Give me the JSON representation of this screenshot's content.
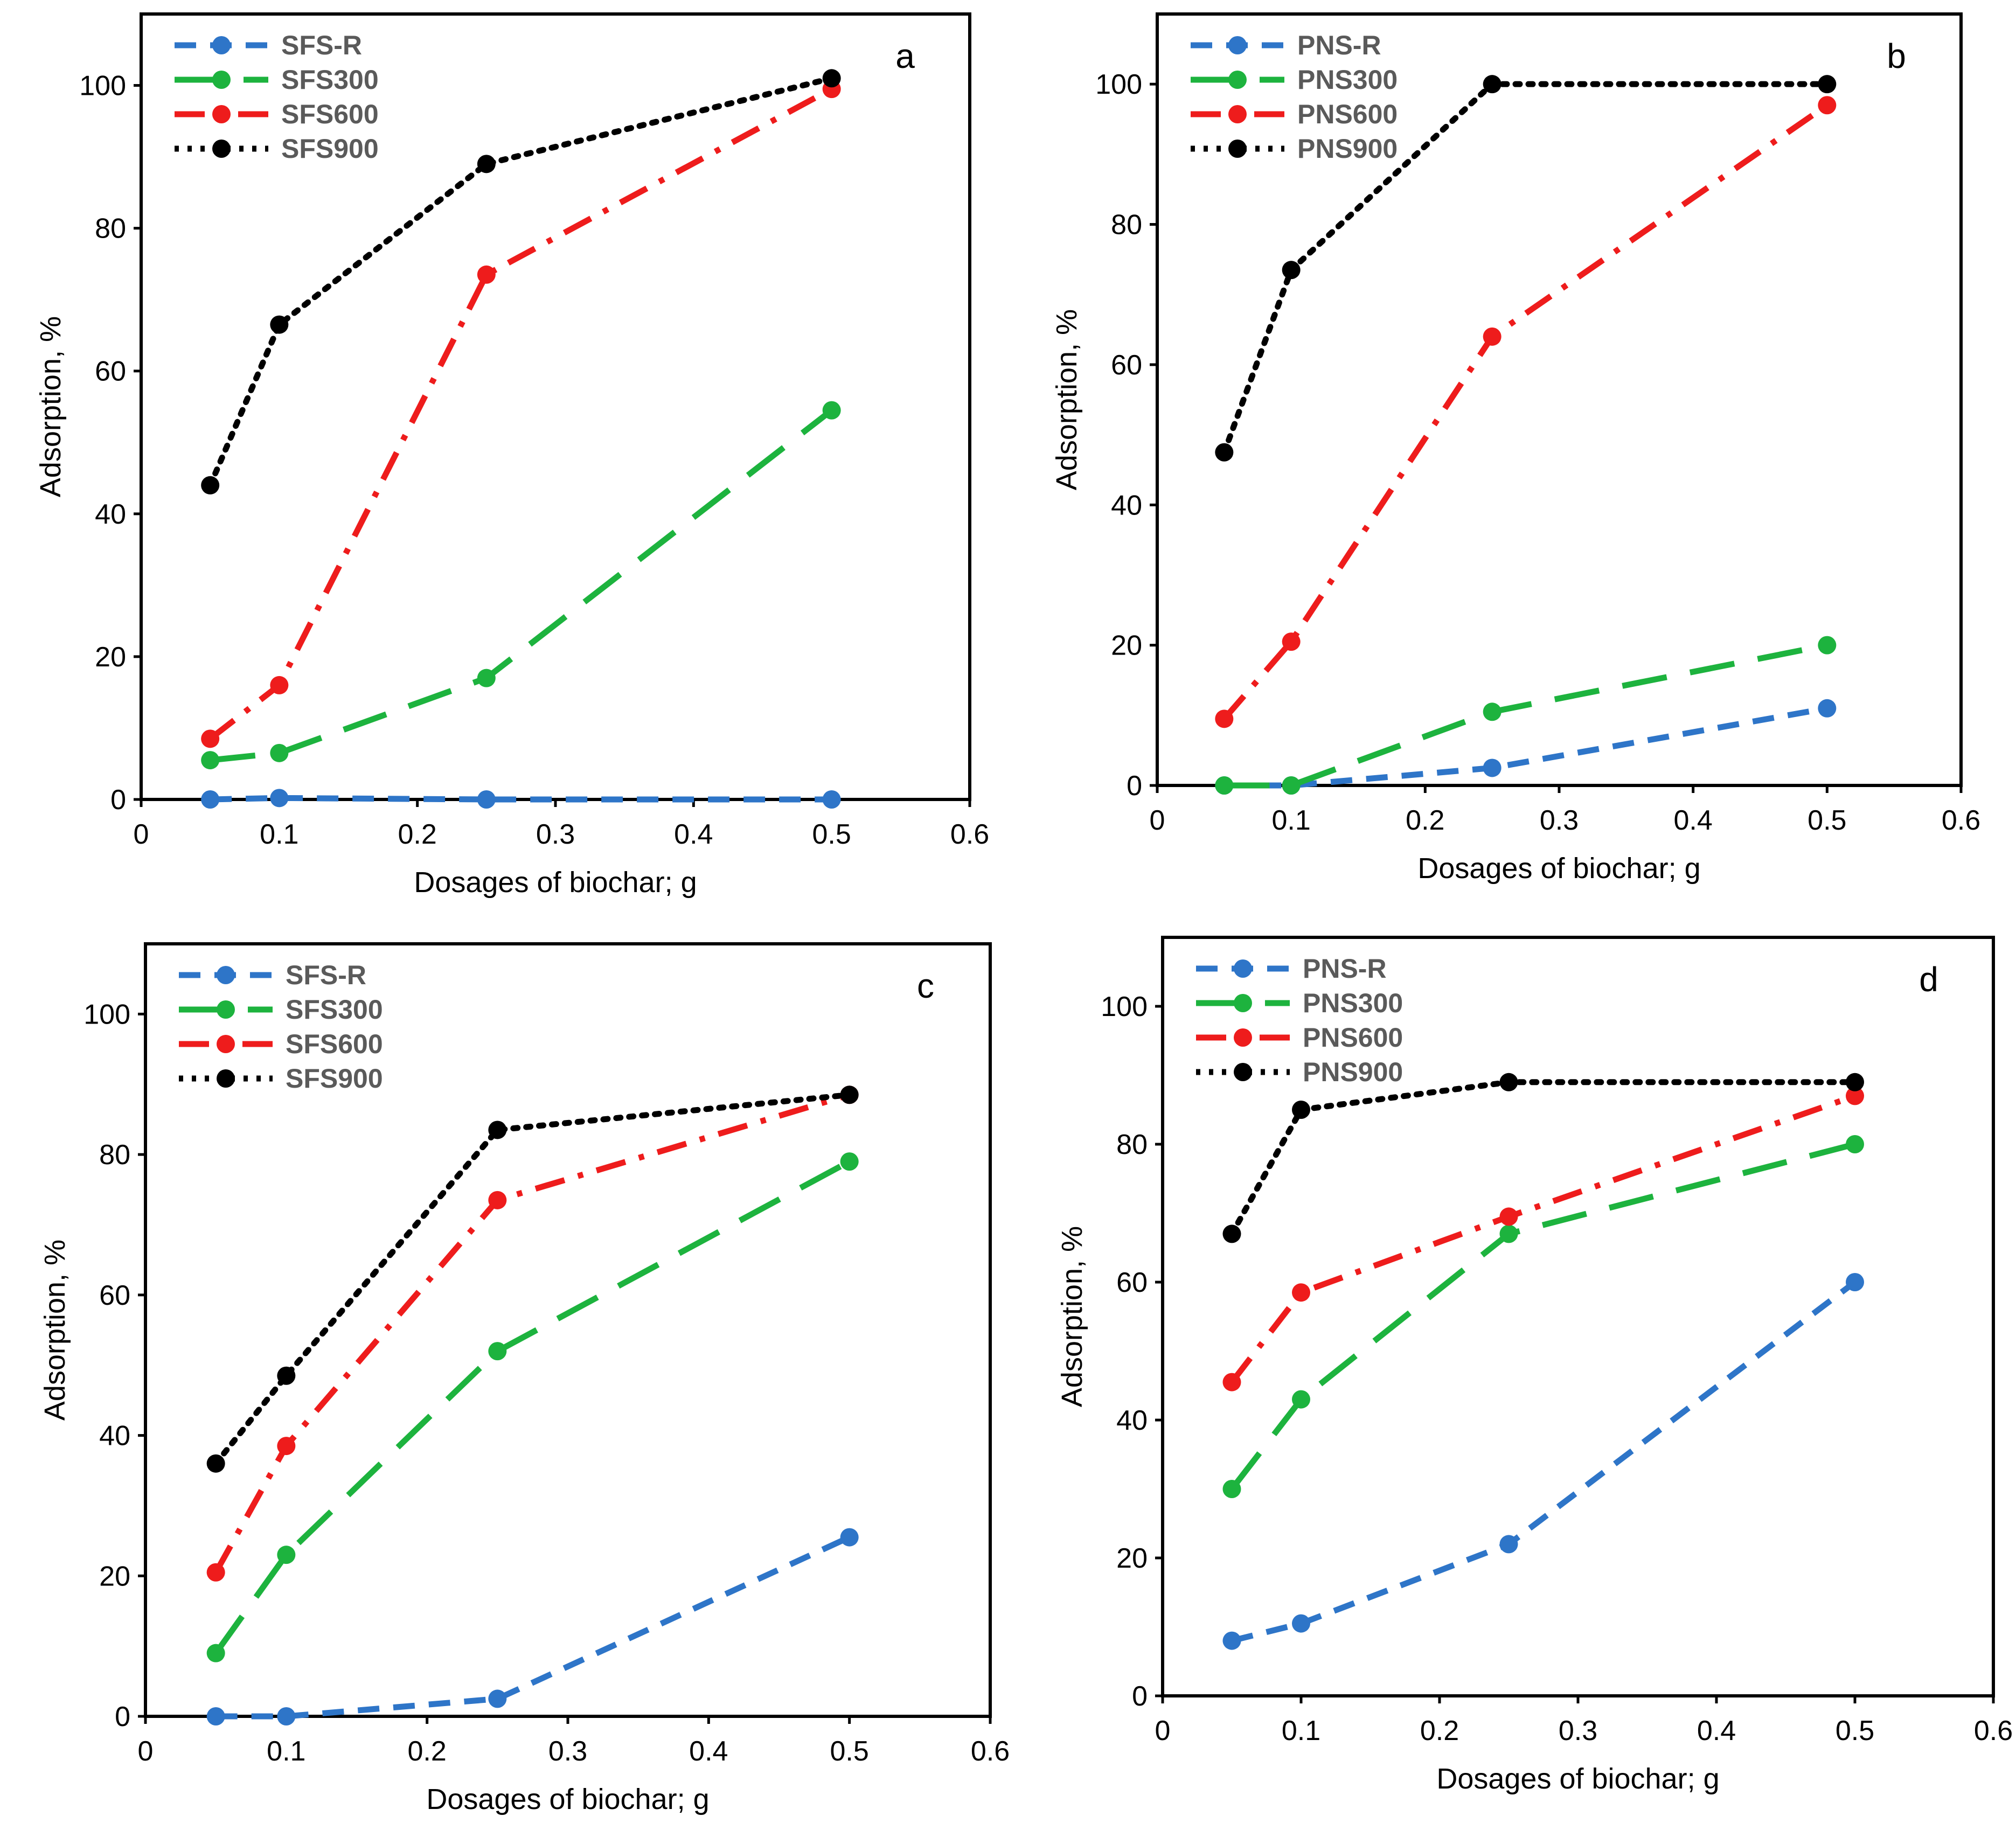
{
  "colors": {
    "R": "#2E75C8",
    "300": "#1DB33E",
    "600": "#EE1C1C",
    "900": "#000000"
  },
  "chart_data": [
    {
      "type": "line",
      "panel": "a",
      "xlabel": "Dosages of biochar; g",
      "ylabel": "Adsorption, %",
      "xlim": [
        0,
        0.6
      ],
      "ylim": [
        0,
        110
      ],
      "xticks": [
        "0",
        "0.1",
        "0.2",
        "0.3",
        "0.4",
        "0.5",
        "0.6"
      ],
      "yticks": [
        "0",
        "20",
        "40",
        "60",
        "80",
        "100"
      ],
      "legend_position": "top-left",
      "x": [
        0.05,
        0.1,
        0.25,
        0.5
      ],
      "series": [
        {
          "name": "SFS-R",
          "key": "R",
          "values": [
            0,
            0.2,
            0,
            0
          ]
        },
        {
          "name": "SFS300",
          "key": "300",
          "values": [
            5.5,
            6.5,
            17,
            54.5
          ]
        },
        {
          "name": "SFS600",
          "key": "600",
          "values": [
            8.5,
            16,
            73.5,
            99.5
          ]
        },
        {
          "name": "SFS900",
          "key": "900",
          "values": [
            44,
            66.5,
            89,
            101
          ]
        }
      ]
    },
    {
      "type": "line",
      "panel": "b",
      "xlabel": "Dosages of biochar; g",
      "ylabel": "Adsorption, %",
      "xlim": [
        0,
        0.6
      ],
      "ylim": [
        0,
        110
      ],
      "xticks": [
        "0",
        "0.1",
        "0.2",
        "0.3",
        "0.4",
        "0.5",
        "0.6"
      ],
      "yticks": [
        "0",
        "20",
        "40",
        "60",
        "80",
        "100"
      ],
      "legend_position": "top-left",
      "x": [
        0.05,
        0.1,
        0.25,
        0.5
      ],
      "series": [
        {
          "name": "PNS-R",
          "key": "R",
          "values": [
            0,
            0,
            2.5,
            11
          ]
        },
        {
          "name": "PNS300",
          "key": "300",
          "values": [
            0,
            0,
            10.5,
            20
          ]
        },
        {
          "name": "PNS600",
          "key": "600",
          "values": [
            9.5,
            20.5,
            64,
            97
          ]
        },
        {
          "name": "PNS900",
          "key": "900",
          "values": [
            47.5,
            73.5,
            100,
            100
          ]
        }
      ]
    },
    {
      "type": "line",
      "panel": "c",
      "xlabel": "Dosages of biochar; g",
      "ylabel": "Adsorption, %",
      "xlim": [
        0,
        0.6
      ],
      "ylim": [
        0,
        110
      ],
      "xticks": [
        "0",
        "0.1",
        "0.2",
        "0.3",
        "0.4",
        "0.5",
        "0.6"
      ],
      "yticks": [
        "0",
        "20",
        "40",
        "60",
        "80",
        "100"
      ],
      "legend_position": "top-left",
      "x": [
        0.05,
        0.1,
        0.25,
        0.5
      ],
      "series": [
        {
          "name": "SFS-R",
          "key": "R",
          "values": [
            0,
            0,
            2.5,
            25.5
          ]
        },
        {
          "name": "SFS300",
          "key": "300",
          "values": [
            9,
            23,
            52,
            79
          ]
        },
        {
          "name": "SFS600",
          "key": "600",
          "values": [
            20.5,
            38.5,
            73.5,
            88.5
          ]
        },
        {
          "name": "SFS900",
          "key": "900",
          "values": [
            36,
            48.5,
            83.5,
            88.5
          ]
        }
      ]
    },
    {
      "type": "line",
      "panel": "d",
      "xlabel": "Dosages of biochar; g",
      "ylabel": "Adsorption, %",
      "xlim": [
        0,
        0.6
      ],
      "ylim": [
        0,
        110
      ],
      "xticks": [
        "0",
        "0.1",
        "0.2",
        "0.3",
        "0.4",
        "0.5",
        "0.6"
      ],
      "yticks": [
        "0",
        "20",
        "40",
        "60",
        "80",
        "100"
      ],
      "legend_position": "top-left",
      "x": [
        0.05,
        0.1,
        0.25,
        0.5
      ],
      "series": [
        {
          "name": "PNS-R",
          "key": "R",
          "values": [
            8,
            10.5,
            22,
            60
          ]
        },
        {
          "name": "PNS300",
          "key": "300",
          "values": [
            30,
            43,
            67,
            80
          ]
        },
        {
          "name": "PNS600",
          "key": "600",
          "values": [
            45.5,
            58.5,
            69.5,
            87
          ]
        },
        {
          "name": "PNS900",
          "key": "900",
          "values": [
            67,
            85,
            89,
            89
          ]
        }
      ]
    }
  ]
}
